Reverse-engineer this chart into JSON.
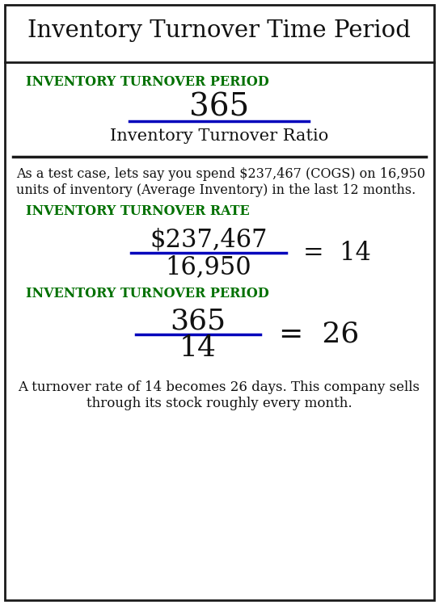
{
  "title": "Inventory Turnover Time Period",
  "bg_color": "#ffffff",
  "border_color": "#1a1a1a",
  "green_color": "#007000",
  "blue_color": "#0000bb",
  "text_color": "#111111",
  "label1": "INVENTORY TURNOVER PERIOD",
  "numerator1": "365",
  "denominator1": "Inventory Turnover Ratio",
  "desc_text1": "As a test case, lets say you spend $237,467 (COGS) on 16,950",
  "desc_text2": "units of inventory (Average Inventory) in the last 12 months.",
  "label2": "INVENTORY TURNOVER RATE",
  "numerator2": "$237,467",
  "denominator2": "16,950",
  "result2": "=  14",
  "label3": "INVENTORY TURNOVER PERIOD",
  "numerator3": "365",
  "denominator3": "14",
  "result3": "=  26",
  "footer1": "A turnover rate of 14 becomes 26 days. This company sells",
  "footer2": "through its stock roughly every month."
}
